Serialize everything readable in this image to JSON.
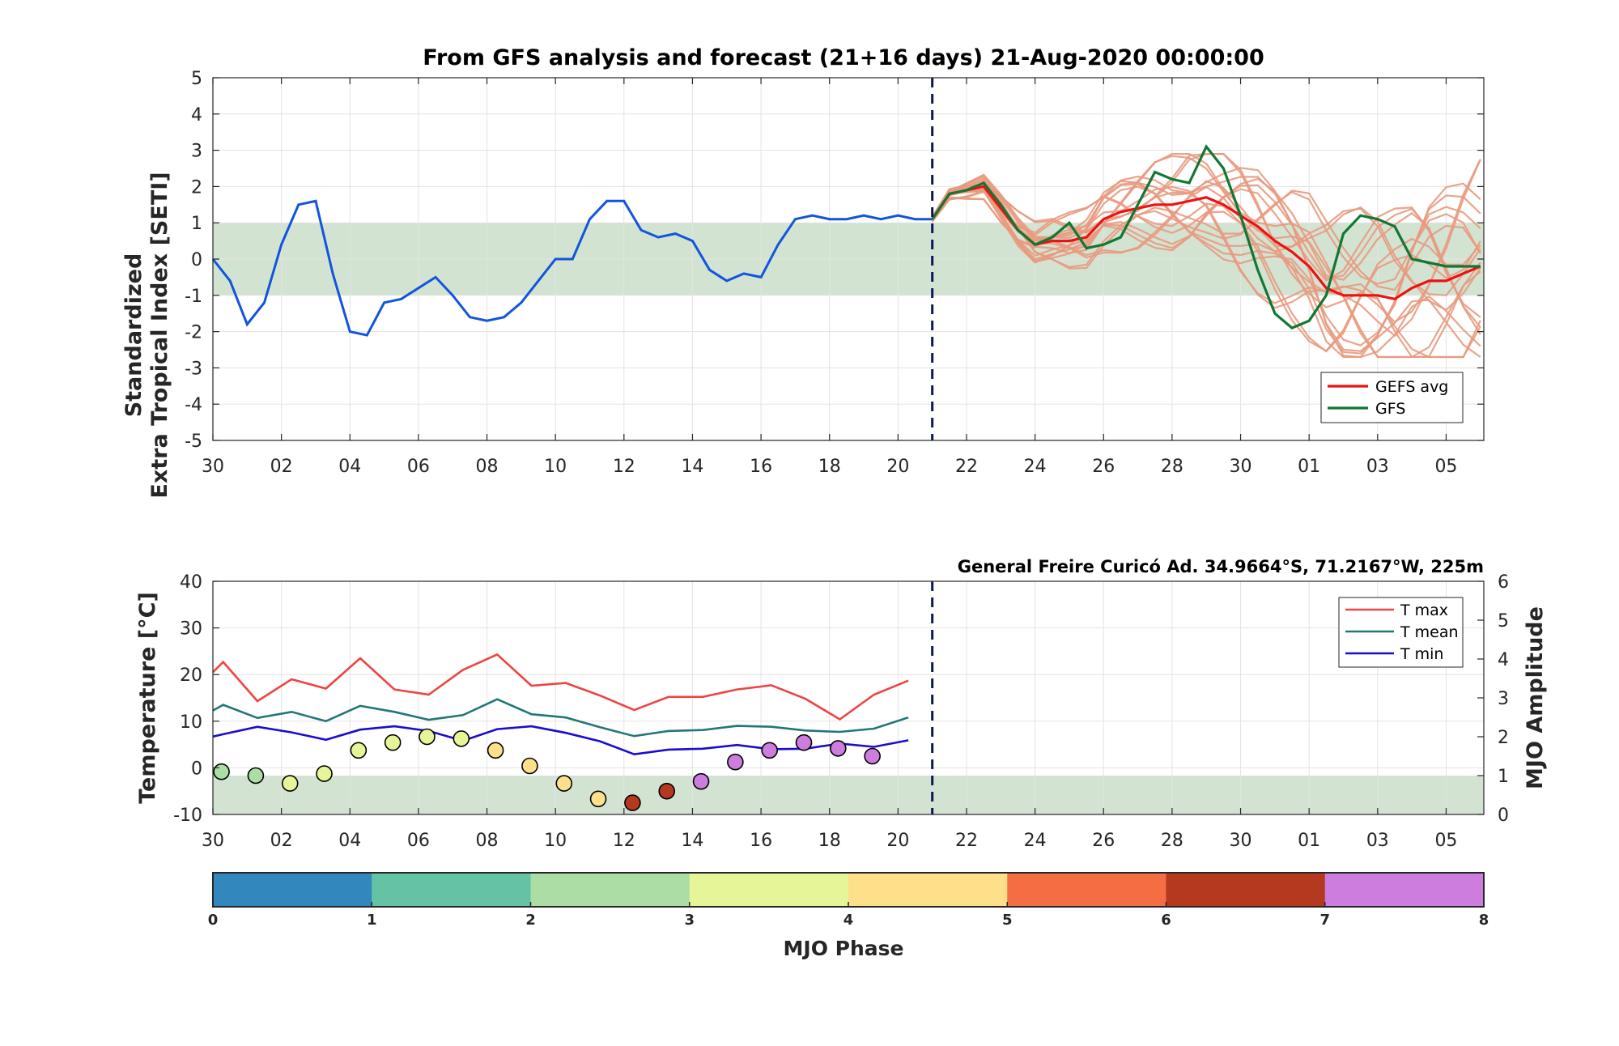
{
  "chart_data": [
    {
      "type": "line",
      "title": "From GFS analysis and forecast (21+16 days) 21-Aug-2020 00:00:00",
      "ylabel_line1": "Standardized",
      "ylabel_line2": "Extra Tropical Index [SETI]",
      "ylim": [
        -5,
        5
      ],
      "xlim": [
        0,
        37.1
      ],
      "yticks": [
        -5,
        -4,
        -3,
        -2,
        -1,
        0,
        1,
        2,
        3,
        4,
        5
      ],
      "ytick_labels": [
        "-5",
        "-4",
        "-3",
        "-2",
        "-1",
        "0",
        "1",
        "2",
        "3",
        "4",
        "5"
      ],
      "xtick_labels": [
        "30",
        "02",
        "04",
        "06",
        "08",
        "10",
        "12",
        "14",
        "16",
        "18",
        "20",
        "22",
        "24",
        "26",
        "28",
        "30",
        "01",
        "03",
        "05"
      ],
      "grid": true,
      "band": [
        -1,
        1
      ],
      "forecast_start": 21,
      "legend_position": "bottom-right",
      "colors": {
        "observed": "#1155dd",
        "gefs_avg": "#ee1111",
        "gfs": "#117733",
        "members": "#e89a80",
        "band": "#d3e3d2"
      },
      "series": [
        {
          "name": "",
          "role": "observed",
          "x": [
            0,
            0.5,
            1,
            1.5,
            2,
            2.5,
            3,
            3.5,
            4,
            4.5,
            5,
            5.5,
            6,
            6.5,
            7,
            7.5,
            8,
            8.5,
            9,
            9.5,
            10,
            10.5,
            11,
            11.5,
            12,
            12.5,
            13,
            13.5,
            14,
            14.5,
            15,
            15.5,
            16,
            16.5,
            17,
            17.5,
            18,
            18.5,
            19,
            19.5,
            20,
            20.5,
            21
          ],
          "y": [
            0,
            -0.6,
            -1.8,
            -1.2,
            0.4,
            1.5,
            1.6,
            -0.4,
            -2.0,
            -2.1,
            -1.2,
            -1.1,
            -0.8,
            -0.5,
            -1.0,
            -1.6,
            -1.7,
            -1.6,
            -1.2,
            -0.6,
            0,
            0,
            1.1,
            1.6,
            1.6,
            0.8,
            0.6,
            0.7,
            0.5,
            -0.3,
            -0.6,
            -0.4,
            -0.5,
            0.4,
            1.1,
            1.2,
            1.1,
            1.1,
            1.2,
            1.1,
            1.2,
            1.1,
            1.1
          ]
        },
        {
          "name": "GEFS avg",
          "role": "gefs_avg",
          "x": [
            21,
            21.5,
            22,
            22.5,
            23,
            23.5,
            24,
            24.5,
            25,
            25.5,
            26,
            26.5,
            27,
            27.5,
            28,
            28.5,
            29,
            29.5,
            30,
            30.5,
            31,
            31.5,
            32,
            32.5,
            33,
            33.5,
            34,
            34.5,
            35,
            35.5,
            36,
            36.5,
            37
          ],
          "y": [
            1.1,
            1.8,
            1.9,
            2.0,
            1.4,
            0.8,
            0.4,
            0.5,
            0.5,
            0.6,
            1.1,
            1.3,
            1.4,
            1.5,
            1.5,
            1.6,
            1.7,
            1.5,
            1.2,
            0.9,
            0.5,
            0.2,
            -0.2,
            -0.8,
            -1.0,
            -1.0,
            -1.0,
            -1.1,
            -0.8,
            -0.6,
            -0.6,
            -0.4,
            -0.2
          ]
        },
        {
          "name": "GFS",
          "role": "gfs",
          "x": [
            21,
            21.5,
            22,
            22.5,
            23,
            23.5,
            24,
            24.5,
            25,
            25.5,
            26,
            26.5,
            27,
            27.5,
            28,
            28.5,
            29,
            29.5,
            30,
            30.5,
            31,
            31.5,
            32,
            32.5,
            33,
            33.5,
            34,
            34.5,
            35,
            35.5,
            36,
            36.5,
            37
          ],
          "y": [
            1.1,
            1.8,
            1.9,
            2.1,
            1.5,
            0.8,
            0.4,
            0.6,
            1.0,
            0.3,
            0.4,
            0.6,
            1.5,
            2.4,
            2.2,
            2.1,
            3.1,
            2.5,
            1.2,
            -0.3,
            -1.5,
            -1.9,
            -1.7,
            -1.0,
            0.7,
            1.2,
            1.1,
            0.9,
            0,
            -0.1,
            -0.2,
            -0.2,
            -0.2
          ]
        }
      ]
    },
    {
      "type": "line",
      "ylabel": "Temperature [°C]",
      "ylabel_right": "MJO Amplitude",
      "xlabel": "MJO Phase",
      "station": "General Freire Curicó Ad. 34.9664°S, 71.2167°W, 225m",
      "ylim": [
        -10,
        40
      ],
      "ylim_right": [
        0,
        6
      ],
      "xlim": [
        0,
        37.1
      ],
      "yticks": [
        -10,
        0,
        10,
        20,
        30,
        40
      ],
      "ytick_labels": [
        "-10",
        "0",
        "10",
        "20",
        "30",
        "40"
      ],
      "yticks_right": [
        0,
        1,
        2,
        3,
        4,
        5,
        6
      ],
      "ytick_labels_right": [
        "0",
        "1",
        "2",
        "3",
        "4",
        "5",
        "6"
      ],
      "xtick_labels": [
        "30",
        "02",
        "04",
        "06",
        "08",
        "10",
        "12",
        "14",
        "16",
        "18",
        "20",
        "22",
        "24",
        "26",
        "28",
        "30",
        "01",
        "03",
        "05"
      ],
      "grid": true,
      "band_right": [
        0,
        1
      ],
      "forecast_start": 21,
      "legend_position": "top-right",
      "colors": {
        "tmax": "#ee4444",
        "tmean": "#227777",
        "tmin": "#1a0dcc",
        "band": "#d3e3d2"
      },
      "series": [
        {
          "name": "T max",
          "role": "tmax",
          "x": [
            0,
            0.3,
            1.3,
            2.3,
            3.3,
            4.3,
            5.3,
            6.3,
            7.3,
            8.3,
            9.3,
            10.3,
            11.3,
            12.3,
            13.3,
            14.3,
            15.3,
            16.3,
            17.3,
            18.3,
            19.3,
            20.3
          ],
          "y": [
            20.5,
            22.7,
            14.3,
            19.0,
            17.0,
            23.5,
            16.8,
            15.7,
            21.0,
            24.3,
            17.6,
            18.2,
            15.5,
            12.4,
            15.2,
            15.2,
            16.8,
            17.7,
            14.8,
            10.4,
            15.7,
            18.7
          ]
        },
        {
          "name": "T mean",
          "role": "tmean",
          "x": [
            0,
            0.3,
            1.3,
            2.3,
            3.3,
            4.3,
            5.3,
            6.3,
            7.3,
            8.3,
            9.3,
            10.3,
            11.3,
            12.3,
            13.3,
            14.3,
            15.3,
            16.3,
            17.3,
            18.3,
            19.3,
            20.3
          ],
          "y": [
            12.3,
            13.5,
            10.7,
            12.0,
            10.0,
            13.3,
            12.0,
            10.3,
            11.3,
            14.7,
            11.5,
            10.8,
            8.7,
            6.8,
            7.9,
            8.1,
            9.0,
            8.8,
            8.0,
            7.7,
            8.4,
            10.8
          ]
        },
        {
          "name": "T min",
          "role": "tmin",
          "x": [
            0,
            0.3,
            1.3,
            2.3,
            3.3,
            4.3,
            5.3,
            6.3,
            7.3,
            8.3,
            9.3,
            10.3,
            11.3,
            12.3,
            13.3,
            14.3,
            15.3,
            16.3,
            17.3,
            18.3,
            19.3,
            20.3
          ],
          "y": [
            6.7,
            7.2,
            8.8,
            7.6,
            6.0,
            8.2,
            8.9,
            7.9,
            5.8,
            8.3,
            8.9,
            7.5,
            5.7,
            2.9,
            3.9,
            4.1,
            4.9,
            4.0,
            4.1,
            5.2,
            4.5,
            5.9
          ]
        }
      ],
      "mjo_points": {
        "x": [
          0.25,
          1.25,
          2.25,
          3.25,
          4.25,
          5.25,
          6.25,
          7.25,
          8.25,
          9.25,
          10.25,
          11.25,
          12.25,
          13.25,
          14.25,
          15.25,
          16.25,
          17.25,
          18.25,
          19.25
        ],
        "amplitude": [
          1.1,
          1.0,
          0.8,
          1.05,
          1.65,
          1.85,
          2.0,
          1.95,
          1.65,
          1.25,
          0.8,
          0.4,
          0.3,
          0.6,
          0.85,
          1.35,
          1.65,
          1.85,
          1.7,
          1.5
        ],
        "phase": [
          2,
          2,
          3,
          3,
          3,
          3,
          3,
          3,
          4,
          4,
          4,
          4,
          6,
          6,
          7,
          7,
          7,
          7,
          7,
          7
        ]
      }
    },
    {
      "type": "colorbar",
      "label": "MJO Phase",
      "tick_labels": [
        "0",
        "1",
        "2",
        "3",
        "4",
        "5",
        "6",
        "7",
        "8"
      ],
      "colors": [
        "#3288bd",
        "#66c2a5",
        "#abdda4",
        "#e6f598",
        "#fee08b",
        "#f46d43",
        "#b5391f",
        "#cc7ddd"
      ]
    }
  ]
}
